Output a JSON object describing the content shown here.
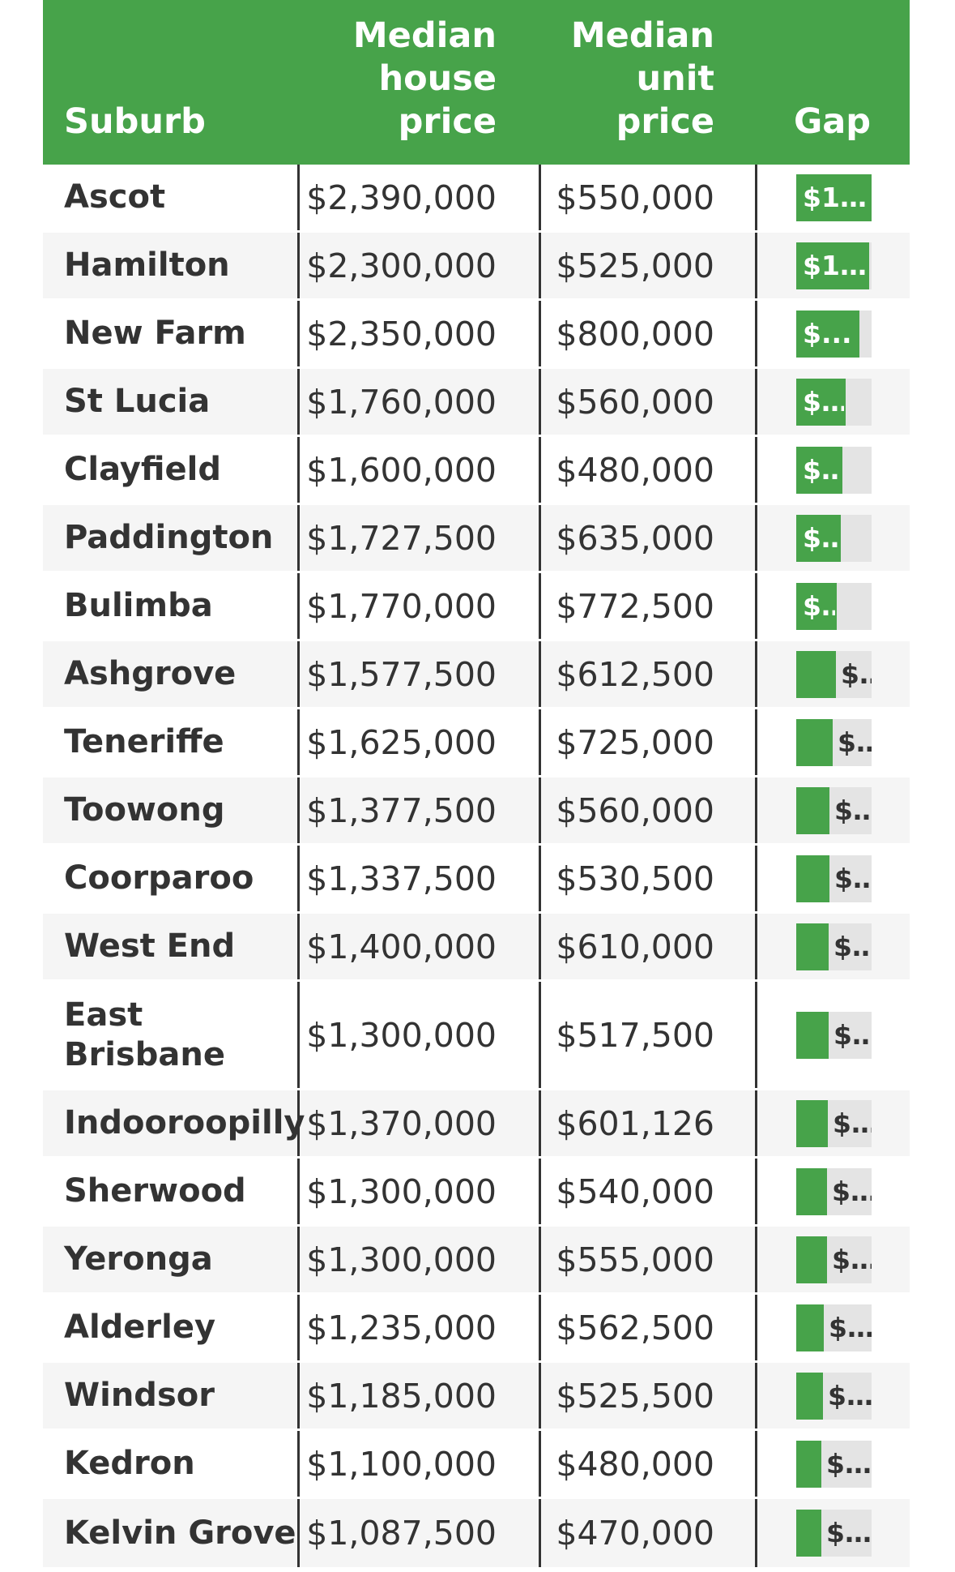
{
  "header": {
    "suburb": "Suburb",
    "house": [
      "Median",
      "house",
      "price"
    ],
    "unit": [
      "Median",
      "unit",
      "price"
    ],
    "gap": "Gap"
  },
  "colors": {
    "header_bg": "#47a34a",
    "bar": "#47a34a",
    "track": "#e4e4e4",
    "row_alt": "#f5f5f5",
    "text": "#333333"
  },
  "chart_data": {
    "type": "table",
    "columns": [
      "Suburb",
      "Median house price",
      "Median unit price",
      "Gap"
    ],
    "gap_max": 1840000,
    "rows": [
      {
        "suburb": "Ascot",
        "house": "$2,390,000",
        "unit": "$550,000",
        "gap_label": "$1...",
        "gap": 1840000
      },
      {
        "suburb": "Hamilton",
        "house": "$2,300,000",
        "unit": "$525,000",
        "gap_label": "$1...",
        "gap": 1775000
      },
      {
        "suburb": "New Farm",
        "house": "$2,350,000",
        "unit": "$800,000",
        "gap_label": "$...",
        "gap": 1550000
      },
      {
        "suburb": "St Lucia",
        "house": "$1,760,000",
        "unit": "$560,000",
        "gap_label": "$...",
        "gap": 1200000
      },
      {
        "suburb": "Clayfield",
        "house": "$1,600,000",
        "unit": "$480,000",
        "gap_label": "$...",
        "gap": 1120000
      },
      {
        "suburb": "Paddington",
        "house": "$1,727,500",
        "unit": "$635,000",
        "gap_label": "$...",
        "gap": 1092500
      },
      {
        "suburb": "Bulimba",
        "house": "$1,770,000",
        "unit": "$772,500",
        "gap_label": "$...",
        "gap": 997500
      },
      {
        "suburb": "Ashgrove",
        "house": "$1,577,500",
        "unit": "$612,500",
        "gap_label": "$...",
        "gap": 965000
      },
      {
        "suburb": "Teneriffe",
        "house": "$1,625,000",
        "unit": "$725,000",
        "gap_label": "$...",
        "gap": 900000
      },
      {
        "suburb": "Toowong",
        "house": "$1,377,500",
        "unit": "$560,000",
        "gap_label": "$...",
        "gap": 817500
      },
      {
        "suburb": "Coorparoo",
        "house": "$1,337,500",
        "unit": "$530,500",
        "gap_label": "$...",
        "gap": 807000
      },
      {
        "suburb": "West End",
        "house": "$1,400,000",
        "unit": "$610,000",
        "gap_label": "$...",
        "gap": 790000
      },
      {
        "suburb": "East Brisbane",
        "suburb_lines": [
          "East",
          "Brisbane"
        ],
        "house": "$1,300,000",
        "unit": "$517,500",
        "gap_label": "$...",
        "gap": 782500
      },
      {
        "suburb": "Indooroopilly",
        "house": "$1,370,000",
        "unit": "$601,126",
        "gap_label": "$...",
        "gap": 768874
      },
      {
        "suburb": "Sherwood",
        "house": "$1,300,000",
        "unit": "$540,000",
        "gap_label": "$...",
        "gap": 760000
      },
      {
        "suburb": "Yeronga",
        "house": "$1,300,000",
        "unit": "$555,000",
        "gap_label": "$...",
        "gap": 745000
      },
      {
        "suburb": "Alderley",
        "house": "$1,235,000",
        "unit": "$562,500",
        "gap_label": "$...",
        "gap": 672500
      },
      {
        "suburb": "Windsor",
        "house": "$1,185,000",
        "unit": "$525,500",
        "gap_label": "$...",
        "gap": 659500
      },
      {
        "suburb": "Kedron",
        "house": "$1,100,000",
        "unit": "$480,000",
        "gap_label": "$...",
        "gap": 620000
      },
      {
        "suburb": "Kelvin Grove",
        "house": "$1,087,500",
        "unit": "$470,000",
        "gap_label": "$...",
        "gap": 617500
      }
    ]
  }
}
